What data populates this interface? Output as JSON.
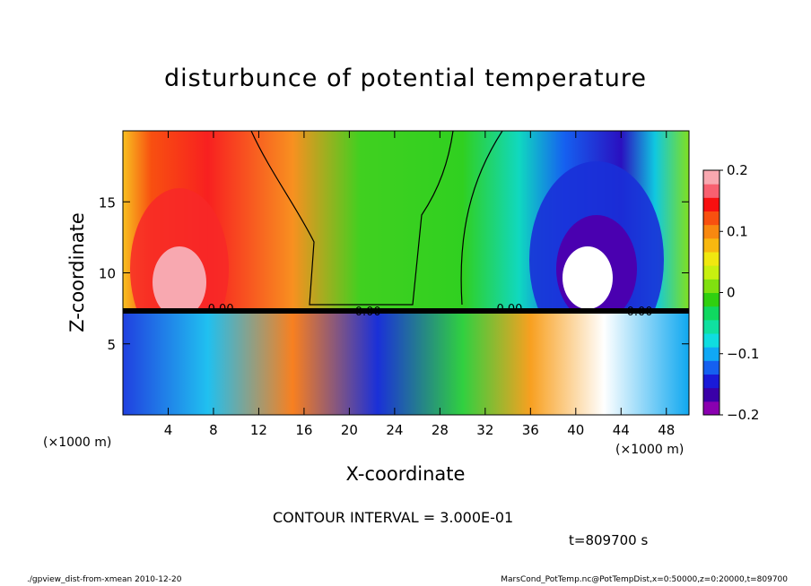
{
  "chart_data": {
    "type": "heatmap",
    "title": "disturbunce of potential temperature",
    "xlabel": "X-coordinate",
    "ylabel": "Z-coordinate",
    "x_unit_label": "(×1000 m)",
    "y_unit_label": "(×1000 m)",
    "xlim": [
      0,
      50
    ],
    "ylim": [
      0,
      20
    ],
    "x_ticks": [
      4,
      8,
      12,
      16,
      20,
      24,
      28,
      32,
      36,
      40,
      44,
      48
    ],
    "y_ticks": [
      5,
      10,
      15
    ],
    "colorbar": {
      "range": [
        -0.2,
        0.2
      ],
      "ticks": [
        {
          "value": 0.2,
          "label": "0.2"
        },
        {
          "value": 0.1,
          "label": "0.1"
        },
        {
          "value": 0.0,
          "label": "0"
        },
        {
          "value": -0.1,
          "label": "−0.1"
        },
        {
          "value": -0.2,
          "label": "−0.2"
        }
      ],
      "colors": [
        "#8a00b0",
        "#3a00a8",
        "#1a1ad8",
        "#1560f0",
        "#10a8f5",
        "#10dde0",
        "#10e0a0",
        "#10d860",
        "#30d010",
        "#80e010",
        "#c8f010",
        "#f0e810",
        "#f8b810",
        "#f88810",
        "#f85010",
        "#f81010",
        "#f86070",
        "#f8a8b0"
      ]
    },
    "contour_interval_text": "CONTOUR INTERVAL = 3.000E-01",
    "contour_labels": [
      "0.00",
      "0.00",
      "0.00",
      "0.00"
    ]
  },
  "time_label": "t=809700 s",
  "footer": {
    "left": "./gpview_dist-from-xmean   2010-12-20",
    "right": "MarsCond_PotTemp.nc@PotTempDist,x=0:50000,z=0:20000,t=809700"
  }
}
